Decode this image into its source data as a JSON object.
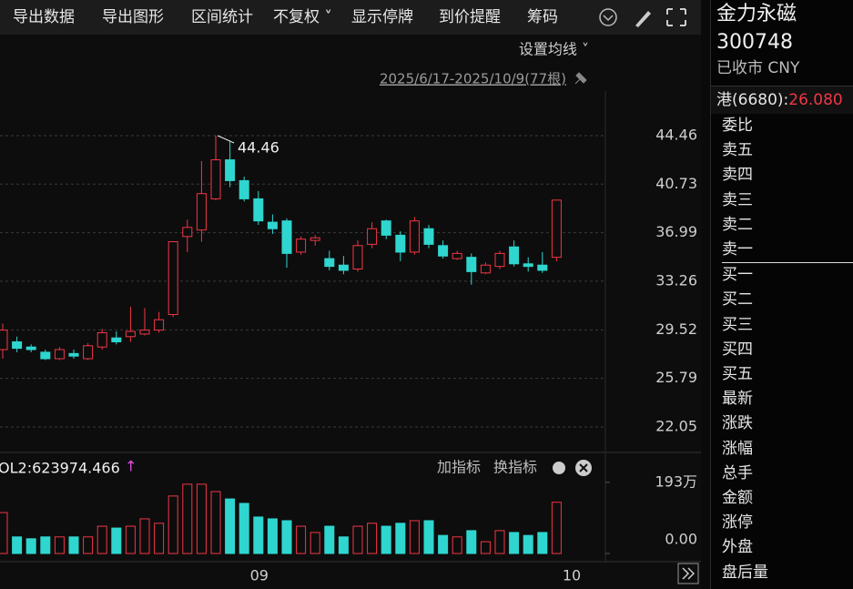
{
  "toolbar": [
    "导出数据",
    "导出图形",
    "区间统计",
    "不复权 ˅",
    "显示停牌",
    "到价提醒",
    "筹码"
  ],
  "ma_setting": "设置均线 ˅",
  "date_range": "2025/6/17-2025/10/9(77根)",
  "volume_header": {
    "label": "OL2:623974.466",
    "arrow": "↑",
    "add": "加指标",
    "switch": "换指标"
  },
  "side": {
    "name": "金力永磁",
    "code": "300748",
    "status": "已收市 CNY",
    "hk_label": "港(6680):",
    "hk_price": "26.080",
    "fields": [
      "委比",
      "卖五",
      "卖四",
      "卖三",
      "卖二",
      "卖一",
      "买一",
      "买二",
      "买三",
      "买四",
      "买五",
      "最新",
      "涨跌",
      "涨幅",
      "总手",
      "金额",
      "涨停",
      "外盘",
      "盘后量"
    ]
  },
  "chart_data": [
    {
      "type": "candlestick",
      "up_color": "#f23645",
      "down_color": "#2fd6cf",
      "grid": true,
      "categories": [
        null,
        null,
        null,
        null,
        null,
        null,
        null,
        null,
        null,
        null,
        null,
        null,
        null,
        null,
        null,
        null,
        null,
        null,
        "09",
        null,
        null,
        null,
        null,
        null,
        null,
        null,
        null,
        null,
        null,
        null,
        null,
        null,
        null,
        null,
        null,
        null,
        null,
        null,
        null,
        null,
        "10"
      ],
      "open": [
        28.0,
        28.6,
        28.2,
        27.8,
        27.3,
        27.7,
        27.3,
        28.2,
        28.9,
        29.0,
        29.2,
        29.5,
        30.7,
        36.7,
        37.2,
        39.6,
        42.6,
        41.0,
        39.6,
        37.8,
        37.9,
        35.5,
        36.4,
        35.0,
        34.5,
        34.2,
        36.1,
        37.9,
        36.8,
        35.5,
        37.3,
        36.0,
        35.0,
        35.1,
        33.9,
        34.4,
        35.9,
        34.6,
        34.5,
        35.1,
        null
      ],
      "high": [
        30.0,
        29.0,
        28.4,
        28.0,
        28.2,
        28.0,
        28.5,
        29.6,
        29.4,
        31.3,
        31.2,
        30.9,
        36.3,
        38.0,
        42.5,
        44.46,
        44.0,
        41.3,
        40.2,
        38.4,
        38.1,
        36.7,
        36.8,
        35.6,
        35.2,
        36.4,
        37.8,
        38.0,
        37.1,
        38.2,
        37.6,
        36.4,
        35.6,
        35.4,
        34.7,
        35.6,
        36.4,
        35.1,
        35.5,
        39.5,
        null
      ],
      "low": [
        27.3,
        27.8,
        27.8,
        27.2,
        27.2,
        27.3,
        27.2,
        28.0,
        28.4,
        28.6,
        29.1,
        29.3,
        30.5,
        35.5,
        36.3,
        39.5,
        40.5,
        39.4,
        37.6,
        36.9,
        34.3,
        35.3,
        36.0,
        34.1,
        33.8,
        34.0,
        35.8,
        36.5,
        34.8,
        35.3,
        35.8,
        35.0,
        34.9,
        33.0,
        33.8,
        34.2,
        34.4,
        34.0,
        33.9,
        34.8,
        null
      ],
      "close": [
        29.5,
        28.1,
        28.0,
        27.3,
        28.0,
        27.5,
        28.3,
        29.3,
        28.6,
        29.4,
        29.5,
        30.3,
        36.3,
        37.4,
        40.0,
        42.6,
        41.0,
        39.6,
        37.9,
        37.3,
        35.4,
        36.5,
        36.6,
        34.4,
        34.1,
        36.0,
        37.3,
        36.8,
        35.5,
        37.9,
        36.1,
        35.2,
        35.4,
        34.0,
        34.5,
        35.4,
        34.6,
        34.4,
        34.1,
        39.5,
        null
      ],
      "high_labels": [
        null,
        null,
        null,
        null,
        null,
        null,
        null,
        null,
        null,
        null,
        null,
        null,
        null,
        null,
        null,
        "44.46",
        null,
        null,
        null,
        null,
        null,
        null,
        null,
        null,
        null,
        null,
        null,
        null,
        null,
        null,
        null,
        null,
        null,
        null,
        null,
        null,
        null,
        null,
        null,
        null,
        null
      ],
      "ylim": [
        20.09,
        45.09
      ],
      "yticks": [
        44.46,
        40.73,
        36.99,
        33.26,
        29.52,
        25.79,
        22.05
      ]
    },
    {
      "type": "volume",
      "unit_color": "#2fd6cf",
      "values": [
        111,
        45,
        40,
        45,
        45,
        45,
        45,
        74,
        69,
        74,
        94,
        82,
        156,
        188,
        188,
        168,
        148,
        136,
        99,
        94,
        89,
        74,
        57,
        74,
        45,
        74,
        82,
        74,
        82,
        89,
        89,
        49,
        45,
        62,
        32,
        62,
        57,
        49,
        57,
        139,
        null
      ],
      "ylim": [
        0,
        205
      ],
      "yticks": [
        {
          "value": 193,
          "label": "193万"
        },
        {
          "value": 0,
          "label": "0.00"
        }
      ]
    }
  ]
}
